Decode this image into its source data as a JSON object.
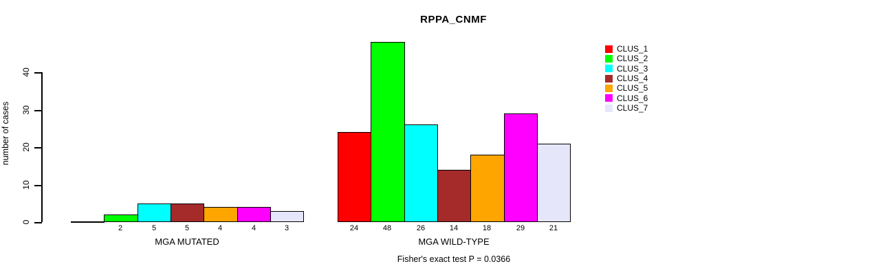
{
  "chart_data": {
    "type": "bar",
    "title": "RPPA_CNMF",
    "ylabel": "number of cases",
    "xlabel": "",
    "categories": [
      "MGA MUTATED",
      "MGA WILD-TYPE"
    ],
    "series": [
      {
        "name": "CLUS_1",
        "color": "#FF0000",
        "values": [
          0,
          24
        ]
      },
      {
        "name": "CLUS_2",
        "color": "#00FF00",
        "values": [
          2,
          48
        ]
      },
      {
        "name": "CLUS_3",
        "color": "#00FFFF",
        "values": [
          5,
          26
        ]
      },
      {
        "name": "CLUS_4",
        "color": "#A52A2A",
        "values": [
          5,
          14
        ]
      },
      {
        "name": "CLUS_5",
        "color": "#FFA500",
        "values": [
          4,
          18
        ]
      },
      {
        "name": "CLUS_6",
        "color": "#FF00FF",
        "values": [
          4,
          29
        ]
      },
      {
        "name": "CLUS_7",
        "color": "#E6E6FA",
        "values": [
          3,
          21
        ]
      }
    ],
    "bar_value_labels": [
      [
        "",
        "2",
        "5",
        "5",
        "4",
        "4",
        "3"
      ],
      [
        "24",
        "48",
        "26",
        "14",
        "18",
        "29",
        "21"
      ]
    ],
    "yticks": [
      0,
      10,
      20,
      30,
      40
    ],
    "ylim": [
      0,
      48
    ],
    "grid": false,
    "legend_position": "right",
    "legend_labels": [
      "CLUS_1",
      "CLUS_2",
      "CLUS_3",
      "CLUS_4",
      "CLUS_5",
      "CLUS_6",
      "CLUS_7"
    ],
    "annotation": "Fisher's exact test P = 0.0366",
    "bar_border_color": "#000000",
    "text_color": "#000000",
    "background_color": "#FFFFFF"
  }
}
